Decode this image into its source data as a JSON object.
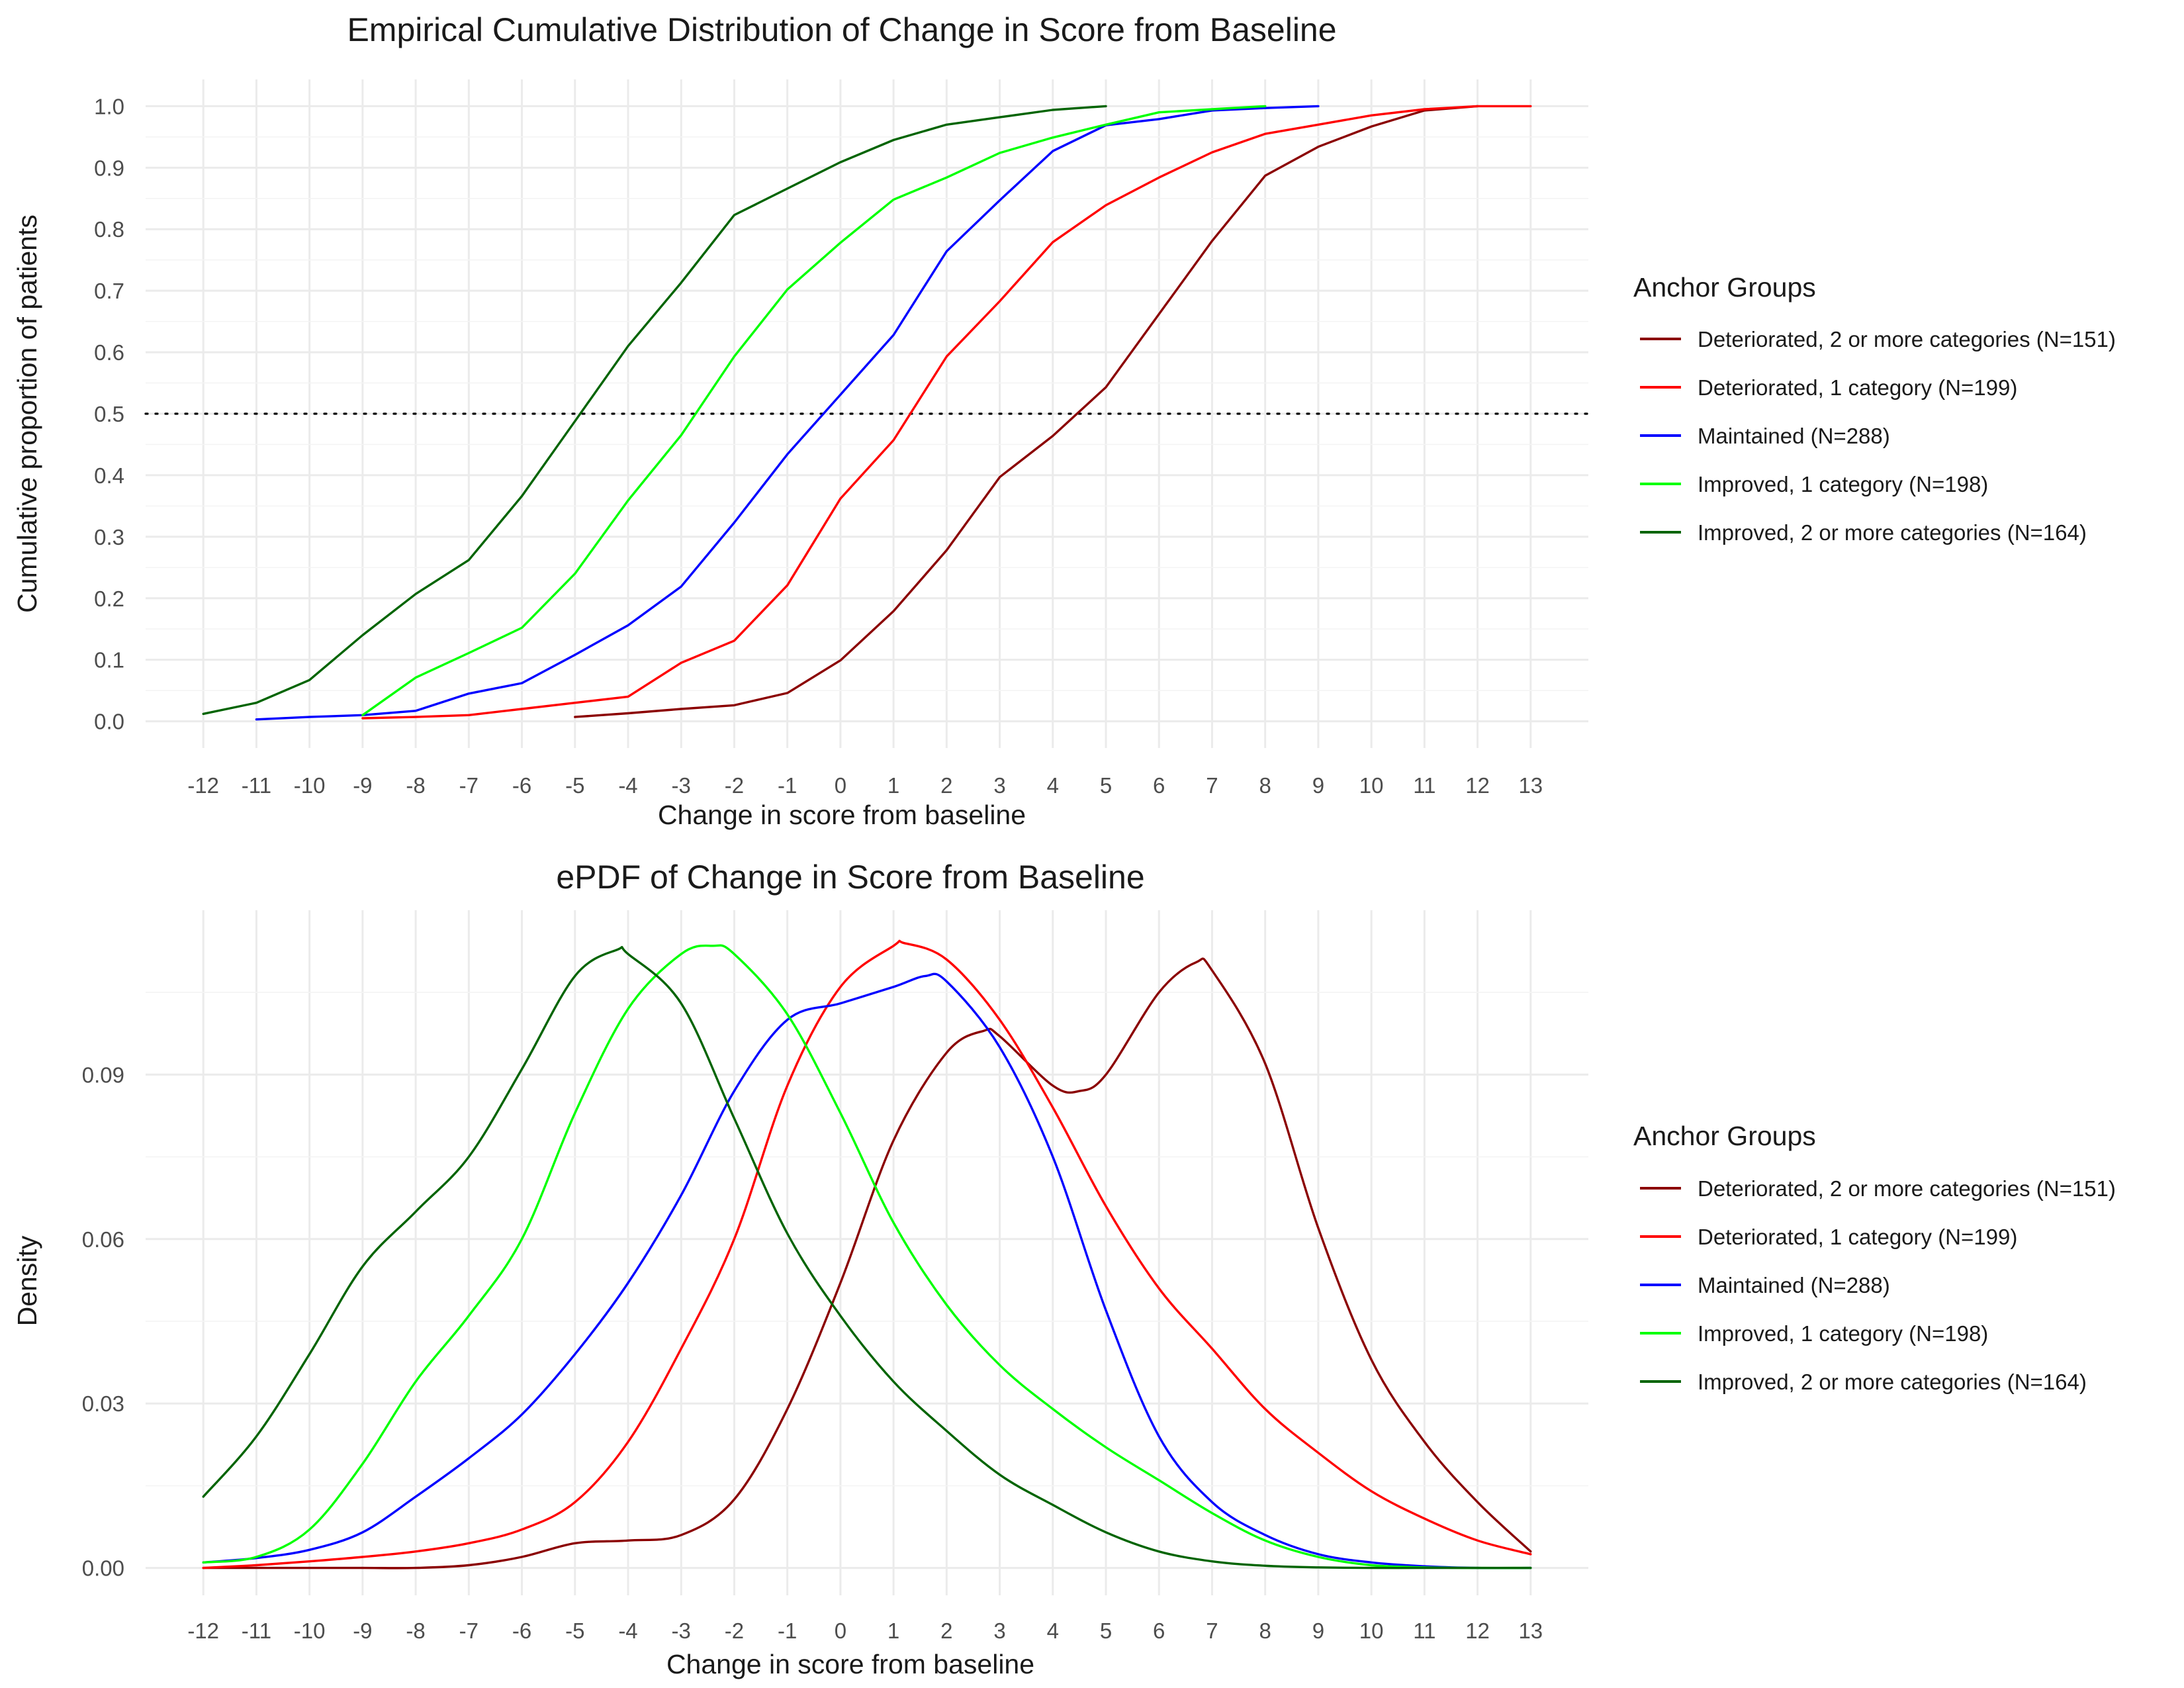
{
  "colors": {
    "deteriorated_2": "#8b0000",
    "deteriorated_1": "#ff0000",
    "maintained": "#0000ff",
    "improved_1": "#00ff00",
    "improved_2": "#006400",
    "reference_line": "#000000"
  },
  "chart_data": [
    {
      "type": "line",
      "title": "Empirical Cumulative Distribution of Change in Score from Baseline",
      "xlabel": "Change in score from baseline",
      "ylabel": "Cumulative proportion of patients",
      "xlim": [
        -12,
        13
      ],
      "ylim": [
        0,
        1
      ],
      "x_ticks": [
        "-12",
        "-11",
        "-10",
        "-9",
        "-8",
        "-7",
        "-6",
        "-5",
        "-4",
        "-3",
        "-2",
        "-1",
        "0",
        "1",
        "2",
        "3",
        "4",
        "5",
        "6",
        "7",
        "8",
        "9",
        "10",
        "11",
        "12",
        "13"
      ],
      "y_ticks": [
        "0.0",
        "0.1",
        "0.2",
        "0.3",
        "0.4",
        "0.5",
        "0.6",
        "0.7",
        "0.8",
        "0.9",
        "1.0"
      ],
      "reference_line": {
        "y": 0.5,
        "style": "dotted"
      },
      "grid": true,
      "legend": {
        "title": "Anchor Groups",
        "position": "right"
      },
      "series": [
        {
          "name": "Deteriorated, 2 or more categories (N=151)",
          "color_key": "deteriorated_2",
          "points": [
            [
              -5,
              0.007
            ],
            [
              -4,
              0.013
            ],
            [
              -3,
              0.02
            ],
            [
              -2,
              0.026
            ],
            [
              -1,
              0.046
            ],
            [
              0,
              0.099
            ],
            [
              1,
              0.179
            ],
            [
              2,
              0.278
            ],
            [
              3,
              0.397
            ],
            [
              4,
              0.464
            ],
            [
              5,
              0.543
            ],
            [
              6,
              0.662
            ],
            [
              7,
              0.781
            ],
            [
              8,
              0.887
            ],
            [
              9,
              0.934
            ],
            [
              10,
              0.967
            ],
            [
              11,
              0.993
            ],
            [
              12,
              1.0
            ]
          ]
        },
        {
          "name": "Deteriorated, 1 category (N=199)",
          "color_key": "deteriorated_1",
          "points": [
            [
              -9,
              0.005
            ],
            [
              -8,
              0.007
            ],
            [
              -7,
              0.01
            ],
            [
              -6,
              0.02
            ],
            [
              -5,
              0.03
            ],
            [
              -4,
              0.04
            ],
            [
              -3,
              0.095
            ],
            [
              -2,
              0.131
            ],
            [
              -1,
              0.221
            ],
            [
              0,
              0.362
            ],
            [
              1,
              0.457
            ],
            [
              2,
              0.593
            ],
            [
              3,
              0.683
            ],
            [
              4,
              0.779
            ],
            [
              5,
              0.839
            ],
            [
              6,
              0.884
            ],
            [
              7,
              0.925
            ],
            [
              8,
              0.955
            ],
            [
              9,
              0.97
            ],
            [
              10,
              0.985
            ],
            [
              11,
              0.995
            ],
            [
              12,
              1.0
            ],
            [
              13,
              1.0
            ]
          ]
        },
        {
          "name": "Maintained (N=288)",
          "color_key": "maintained",
          "points": [
            [
              -11,
              0.003
            ],
            [
              -10,
              0.007
            ],
            [
              -9,
              0.01
            ],
            [
              -8,
              0.017
            ],
            [
              -7,
              0.045
            ],
            [
              -6,
              0.062
            ],
            [
              -5,
              0.108
            ],
            [
              -4,
              0.156
            ],
            [
              -3,
              0.219
            ],
            [
              -2,
              0.323
            ],
            [
              -1,
              0.434
            ],
            [
              0,
              0.531
            ],
            [
              1,
              0.628
            ],
            [
              2,
              0.764
            ],
            [
              3,
              0.847
            ],
            [
              4,
              0.927
            ],
            [
              5,
              0.969
            ],
            [
              6,
              0.979
            ],
            [
              7,
              0.993
            ],
            [
              8,
              0.997
            ],
            [
              9,
              1.0
            ]
          ]
        },
        {
          "name": "Improved, 1 category (N=198)",
          "color_key": "improved_1",
          "points": [
            [
              -9,
              0.01
            ],
            [
              -8,
              0.071
            ],
            [
              -7,
              0.111
            ],
            [
              -6,
              0.152
            ],
            [
              -5,
              0.24
            ],
            [
              -4,
              0.359
            ],
            [
              -3,
              0.465
            ],
            [
              -2,
              0.593
            ],
            [
              -1,
              0.702
            ],
            [
              0,
              0.778
            ],
            [
              1,
              0.848
            ],
            [
              2,
              0.884
            ],
            [
              3,
              0.924
            ],
            [
              4,
              0.949
            ],
            [
              5,
              0.97
            ],
            [
              6,
              0.99
            ],
            [
              7,
              0.995
            ],
            [
              8,
              1.0
            ]
          ]
        },
        {
          "name": "Improved, 2 or more categories (N=164)",
          "color_key": "improved_2",
          "points": [
            [
              -12,
              0.012
            ],
            [
              -11,
              0.03
            ],
            [
              -10,
              0.067
            ],
            [
              -9,
              0.14
            ],
            [
              -8,
              0.207
            ],
            [
              -7,
              0.262
            ],
            [
              -6,
              0.366
            ],
            [
              -5,
              0.488
            ],
            [
              -4,
              0.61
            ],
            [
              -3,
              0.713
            ],
            [
              -2,
              0.823
            ],
            [
              -1,
              0.866
            ],
            [
              0,
              0.909
            ],
            [
              1,
              0.945
            ],
            [
              2,
              0.97
            ],
            [
              3,
              0.982
            ],
            [
              4,
              0.994
            ],
            [
              5,
              1.0
            ]
          ]
        }
      ]
    },
    {
      "type": "line",
      "title": "ePDF of Change in Score from Baseline",
      "xlabel": "Change in score from baseline",
      "ylabel": "Density",
      "xlim": [
        -12,
        13
      ],
      "ylim": [
        0,
        0.115
      ],
      "x_ticks": [
        "-12",
        "-11",
        "-10",
        "-9",
        "-8",
        "-7",
        "-6",
        "-5",
        "-4",
        "-3",
        "-2",
        "-1",
        "0",
        "1",
        "2",
        "3",
        "4",
        "5",
        "6",
        "7",
        "8",
        "9",
        "10",
        "11",
        "12",
        "13"
      ],
      "y_ticks": [
        "0.00",
        "0.03",
        "0.06",
        "0.09"
      ],
      "grid": true,
      "legend": {
        "title": "Anchor Groups",
        "position": "right"
      },
      "series": [
        {
          "name": "Deteriorated, 2 or more categories (N=151)",
          "color_key": "deteriorated_2",
          "points": [
            [
              -12,
              0.0
            ],
            [
              -11,
              0.0
            ],
            [
              -10,
              0.0
            ],
            [
              -9,
              0.0
            ],
            [
              -8,
              0.0
            ],
            [
              -7,
              0.0005
            ],
            [
              -6,
              0.002
            ],
            [
              -5,
              0.0045
            ],
            [
              -4,
              0.005
            ],
            [
              -3,
              0.006
            ],
            [
              -2,
              0.0125
            ],
            [
              -1,
              0.029
            ],
            [
              0,
              0.052
            ],
            [
              1,
              0.078
            ],
            [
              2,
              0.094
            ],
            [
              2.7,
              0.098
            ],
            [
              3,
              0.097
            ],
            [
              4,
              0.088
            ],
            [
              4.5,
              0.087
            ],
            [
              5,
              0.09
            ],
            [
              6,
              0.105
            ],
            [
              6.7,
              0.1105
            ],
            [
              7,
              0.109
            ],
            [
              8,
              0.092
            ],
            [
              9,
              0.062
            ],
            [
              10,
              0.038
            ],
            [
              11,
              0.023
            ],
            [
              12,
              0.012
            ],
            [
              13,
              0.003
            ]
          ]
        },
        {
          "name": "Deteriorated, 1 category (N=199)",
          "color_key": "deteriorated_1",
          "points": [
            [
              -12,
              0.0
            ],
            [
              -11,
              0.0005
            ],
            [
              -10,
              0.0012
            ],
            [
              -9,
              0.002
            ],
            [
              -8,
              0.003
            ],
            [
              -7,
              0.0045
            ],
            [
              -6,
              0.007
            ],
            [
              -5,
              0.012
            ],
            [
              -4,
              0.023
            ],
            [
              -3,
              0.04
            ],
            [
              -2,
              0.06
            ],
            [
              -1,
              0.088
            ],
            [
              0,
              0.106
            ],
            [
              1,
              0.1135
            ],
            [
              1.2,
              0.114
            ],
            [
              2,
              0.111
            ],
            [
              3,
              0.1
            ],
            [
              4,
              0.084
            ],
            [
              5,
              0.066
            ],
            [
              6,
              0.051
            ],
            [
              7,
              0.04
            ],
            [
              8,
              0.029
            ],
            [
              9,
              0.021
            ],
            [
              10,
              0.014
            ],
            [
              11,
              0.009
            ],
            [
              12,
              0.005
            ],
            [
              13,
              0.0025
            ]
          ]
        },
        {
          "name": "Maintained (N=288)",
          "color_key": "maintained",
          "points": [
            [
              -12,
              0.001
            ],
            [
              -11,
              0.0018
            ],
            [
              -10,
              0.0033
            ],
            [
              -9,
              0.0065
            ],
            [
              -8,
              0.013
            ],
            [
              -7,
              0.02
            ],
            [
              -6,
              0.028
            ],
            [
              -5,
              0.039
            ],
            [
              -4,
              0.052
            ],
            [
              -3,
              0.068
            ],
            [
              -2,
              0.087
            ],
            [
              -1,
              0.1
            ],
            [
              0,
              0.103
            ],
            [
              1,
              0.106
            ],
            [
              1.6,
              0.108
            ],
            [
              2,
              0.107
            ],
            [
              3,
              0.095
            ],
            [
              4,
              0.075
            ],
            [
              5,
              0.047
            ],
            [
              6,
              0.024
            ],
            [
              7,
              0.012
            ],
            [
              8,
              0.006
            ],
            [
              9,
              0.0025
            ],
            [
              10,
              0.001
            ],
            [
              11,
              0.0003
            ],
            [
              12,
              0.0
            ],
            [
              13,
              0.0
            ]
          ]
        },
        {
          "name": "Improved, 1 category (N=198)",
          "color_key": "improved_1",
          "points": [
            [
              -12,
              0.001
            ],
            [
              -11,
              0.002
            ],
            [
              -10,
              0.007
            ],
            [
              -9,
              0.019
            ],
            [
              -8,
              0.034
            ],
            [
              -7,
              0.046
            ],
            [
              -6,
              0.06
            ],
            [
              -5,
              0.083
            ],
            [
              -4,
              0.102
            ],
            [
              -3,
              0.112
            ],
            [
              -2.4,
              0.1135
            ],
            [
              -2,
              0.112
            ],
            [
              -1,
              0.101
            ],
            [
              0,
              0.083
            ],
            [
              1,
              0.063
            ],
            [
              2,
              0.048
            ],
            [
              3,
              0.037
            ],
            [
              4,
              0.029
            ],
            [
              5,
              0.022
            ],
            [
              6,
              0.016
            ],
            [
              7,
              0.01
            ],
            [
              8,
              0.005
            ],
            [
              9,
              0.002
            ],
            [
              10,
              0.0005
            ],
            [
              11,
              0.0001
            ],
            [
              12,
              0.0
            ],
            [
              13,
              0.0
            ]
          ]
        },
        {
          "name": "Improved, 2 or more categories (N=164)",
          "color_key": "improved_2",
          "points": [
            [
              -12,
              0.013
            ],
            [
              -11,
              0.024
            ],
            [
              -10,
              0.039
            ],
            [
              -9,
              0.055
            ],
            [
              -8,
              0.065
            ],
            [
              -7,
              0.075
            ],
            [
              -6,
              0.091
            ],
            [
              -5,
              0.108
            ],
            [
              -4.2,
              0.1128
            ],
            [
              -4,
              0.112
            ],
            [
              -3,
              0.103
            ],
            [
              -2,
              0.082
            ],
            [
              -1,
              0.061
            ],
            [
              0,
              0.046
            ],
            [
              1,
              0.034
            ],
            [
              2,
              0.025
            ],
            [
              3,
              0.017
            ],
            [
              4,
              0.0115
            ],
            [
              5,
              0.0065
            ],
            [
              6,
              0.003
            ],
            [
              7,
              0.0012
            ],
            [
              8,
              0.0004
            ],
            [
              9,
              0.0001
            ],
            [
              10,
              0.0
            ],
            [
              11,
              0.0
            ],
            [
              12,
              0.0
            ],
            [
              13,
              0.0
            ]
          ]
        }
      ]
    }
  ]
}
